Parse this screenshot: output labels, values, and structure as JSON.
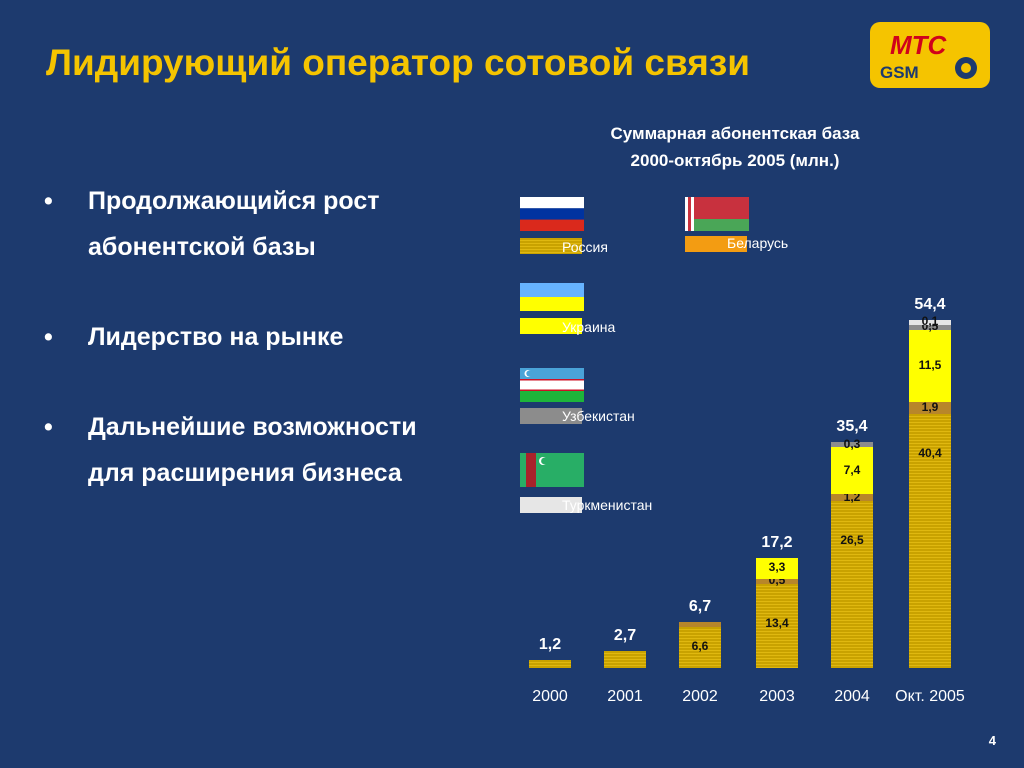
{
  "title": "Лидирующий оператор сотовой связи",
  "logo": {
    "top": "MTC",
    "bottom": "GSM"
  },
  "bullets": [
    "Продолжающийся рост абонентской базы",
    "Лидерство на рынке",
    "Дальнейшие возможности для расширения бизнеса"
  ],
  "bullet_marker": "•",
  "page_number": "4",
  "colors": {
    "Россия": "#d4aa08",
    "Беларусь": "#f39c12",
    "Украина": "#ffff00",
    "Узбекистан": "#8c8c8c",
    "Туркменистан": "#e6e6e6",
    "overlap": "#b8862a"
  },
  "chart_data": {
    "type": "bar",
    "stacked": true,
    "title": "Суммарная абонентская база\n2000-октябрь 2005 (млн.)",
    "categories": [
      "2000",
      "2001",
      "2002",
      "2003",
      "2004",
      "Окт. 2005"
    ],
    "totals": [
      "1,2",
      "2,7",
      "6,7",
      "17,2",
      "35,4",
      "54,4"
    ],
    "total_values": [
      1.2,
      2.7,
      6.7,
      17.2,
      35.4,
      54.4
    ],
    "legend": [
      "Россия",
      "Беларусь",
      "Украина",
      "Узбекистан",
      "Туркменистан"
    ],
    "series": [
      {
        "name": "Россия",
        "values": [
          1.2,
          2.7,
          6.6,
          13.4,
          26.5,
          40.4
        ],
        "labels": [
          "",
          "",
          "6,6",
          "13,4",
          "26,5",
          "40,4"
        ]
      },
      {
        "name": "Беларусь",
        "values": [
          0,
          0,
          0.1,
          0.5,
          1.2,
          1.9
        ],
        "labels": [
          "",
          "",
          "",
          "0,5",
          "1,2",
          "1,9"
        ]
      },
      {
        "name": "Украина",
        "values": [
          0,
          0,
          0,
          3.3,
          7.4,
          11.5
        ],
        "labels": [
          "",
          "",
          "",
          "3,3",
          "7,4",
          "11,5"
        ]
      },
      {
        "name": "Узбекистан",
        "values": [
          0,
          0,
          0,
          0,
          0.3,
          0.5
        ],
        "labels": [
          "",
          "",
          "",
          "",
          "0,3",
          "0,5"
        ]
      },
      {
        "name": "Туркменистан",
        "values": [
          0,
          0,
          0,
          0,
          0,
          0.1
        ],
        "labels": [
          "",
          "",
          "",
          "",
          "",
          "0,1"
        ]
      }
    ],
    "ylim": [
      0,
      54.4
    ],
    "grid": false,
    "legend_placement": "top-left"
  }
}
